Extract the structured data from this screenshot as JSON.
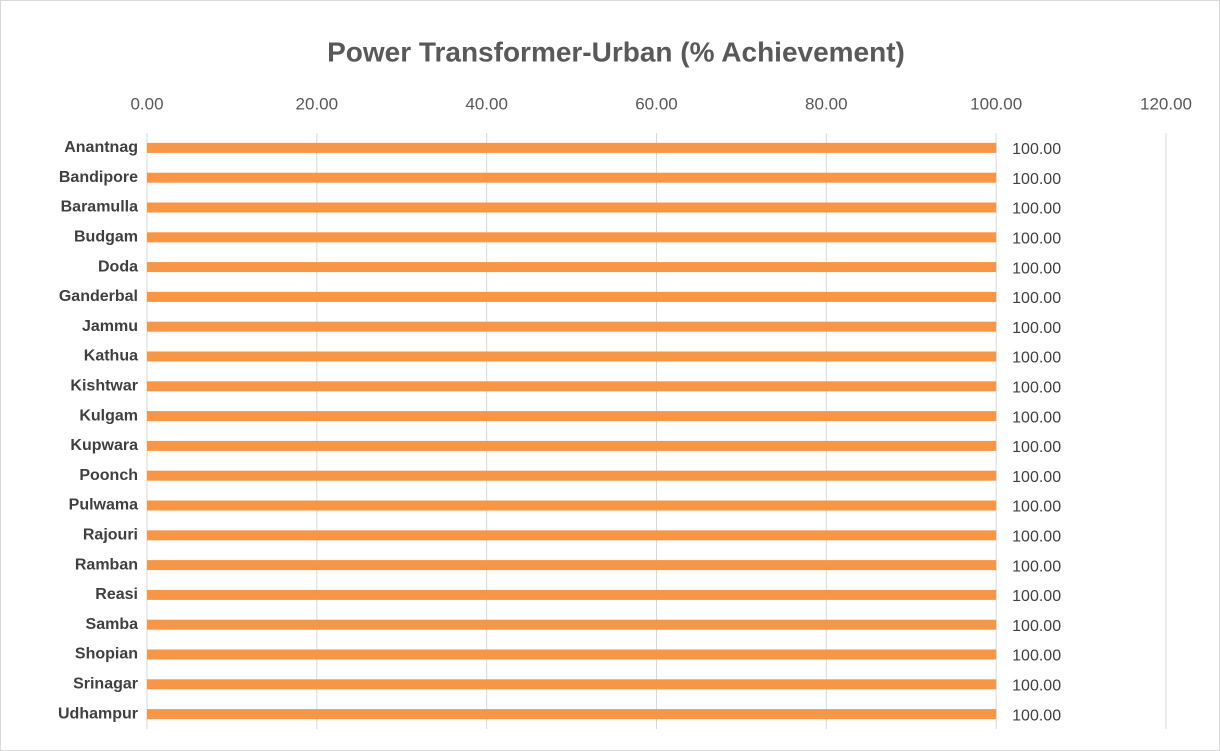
{
  "chart_data": {
    "type": "barh",
    "title": "Power Transformer-Urban (% Achievement)",
    "categories": [
      "Anantnag",
      "Bandipore",
      "Baramulla",
      "Budgam",
      "Doda",
      "Ganderbal",
      "Jammu",
      "Kathua",
      "Kishtwar",
      "Kulgam",
      "Kupwara",
      "Poonch",
      "Pulwama",
      "Rajouri",
      "Ramban",
      "Reasi",
      "Samba",
      "Shopian",
      "Srinagar",
      "Udhampur"
    ],
    "values": [
      100,
      100,
      100,
      100,
      100,
      100,
      100,
      100,
      100,
      100,
      100,
      100,
      100,
      100,
      100,
      100,
      100,
      100,
      100,
      100
    ],
    "value_labels": [
      "100.00",
      "100.00",
      "100.00",
      "100.00",
      "100.00",
      "100.00",
      "100.00",
      "100.00",
      "100.00",
      "100.00",
      "100.00",
      "100.00",
      "100.00",
      "100.00",
      "100.00",
      "100.00",
      "100.00",
      "100.00",
      "100.00",
      "100.00"
    ],
    "color": "#f79646",
    "xlim": [
      0,
      120
    ],
    "xticks": [
      {
        "value": 0,
        "label": "0.00"
      },
      {
        "value": 20,
        "label": "20.00"
      },
      {
        "value": 40,
        "label": "40.00"
      },
      {
        "value": 60,
        "label": "60.00"
      },
      {
        "value": 80,
        "label": "80.00"
      },
      {
        "value": 100,
        "label": "100.00"
      },
      {
        "value": 120,
        "label": "120.00"
      }
    ],
    "grid": true
  }
}
